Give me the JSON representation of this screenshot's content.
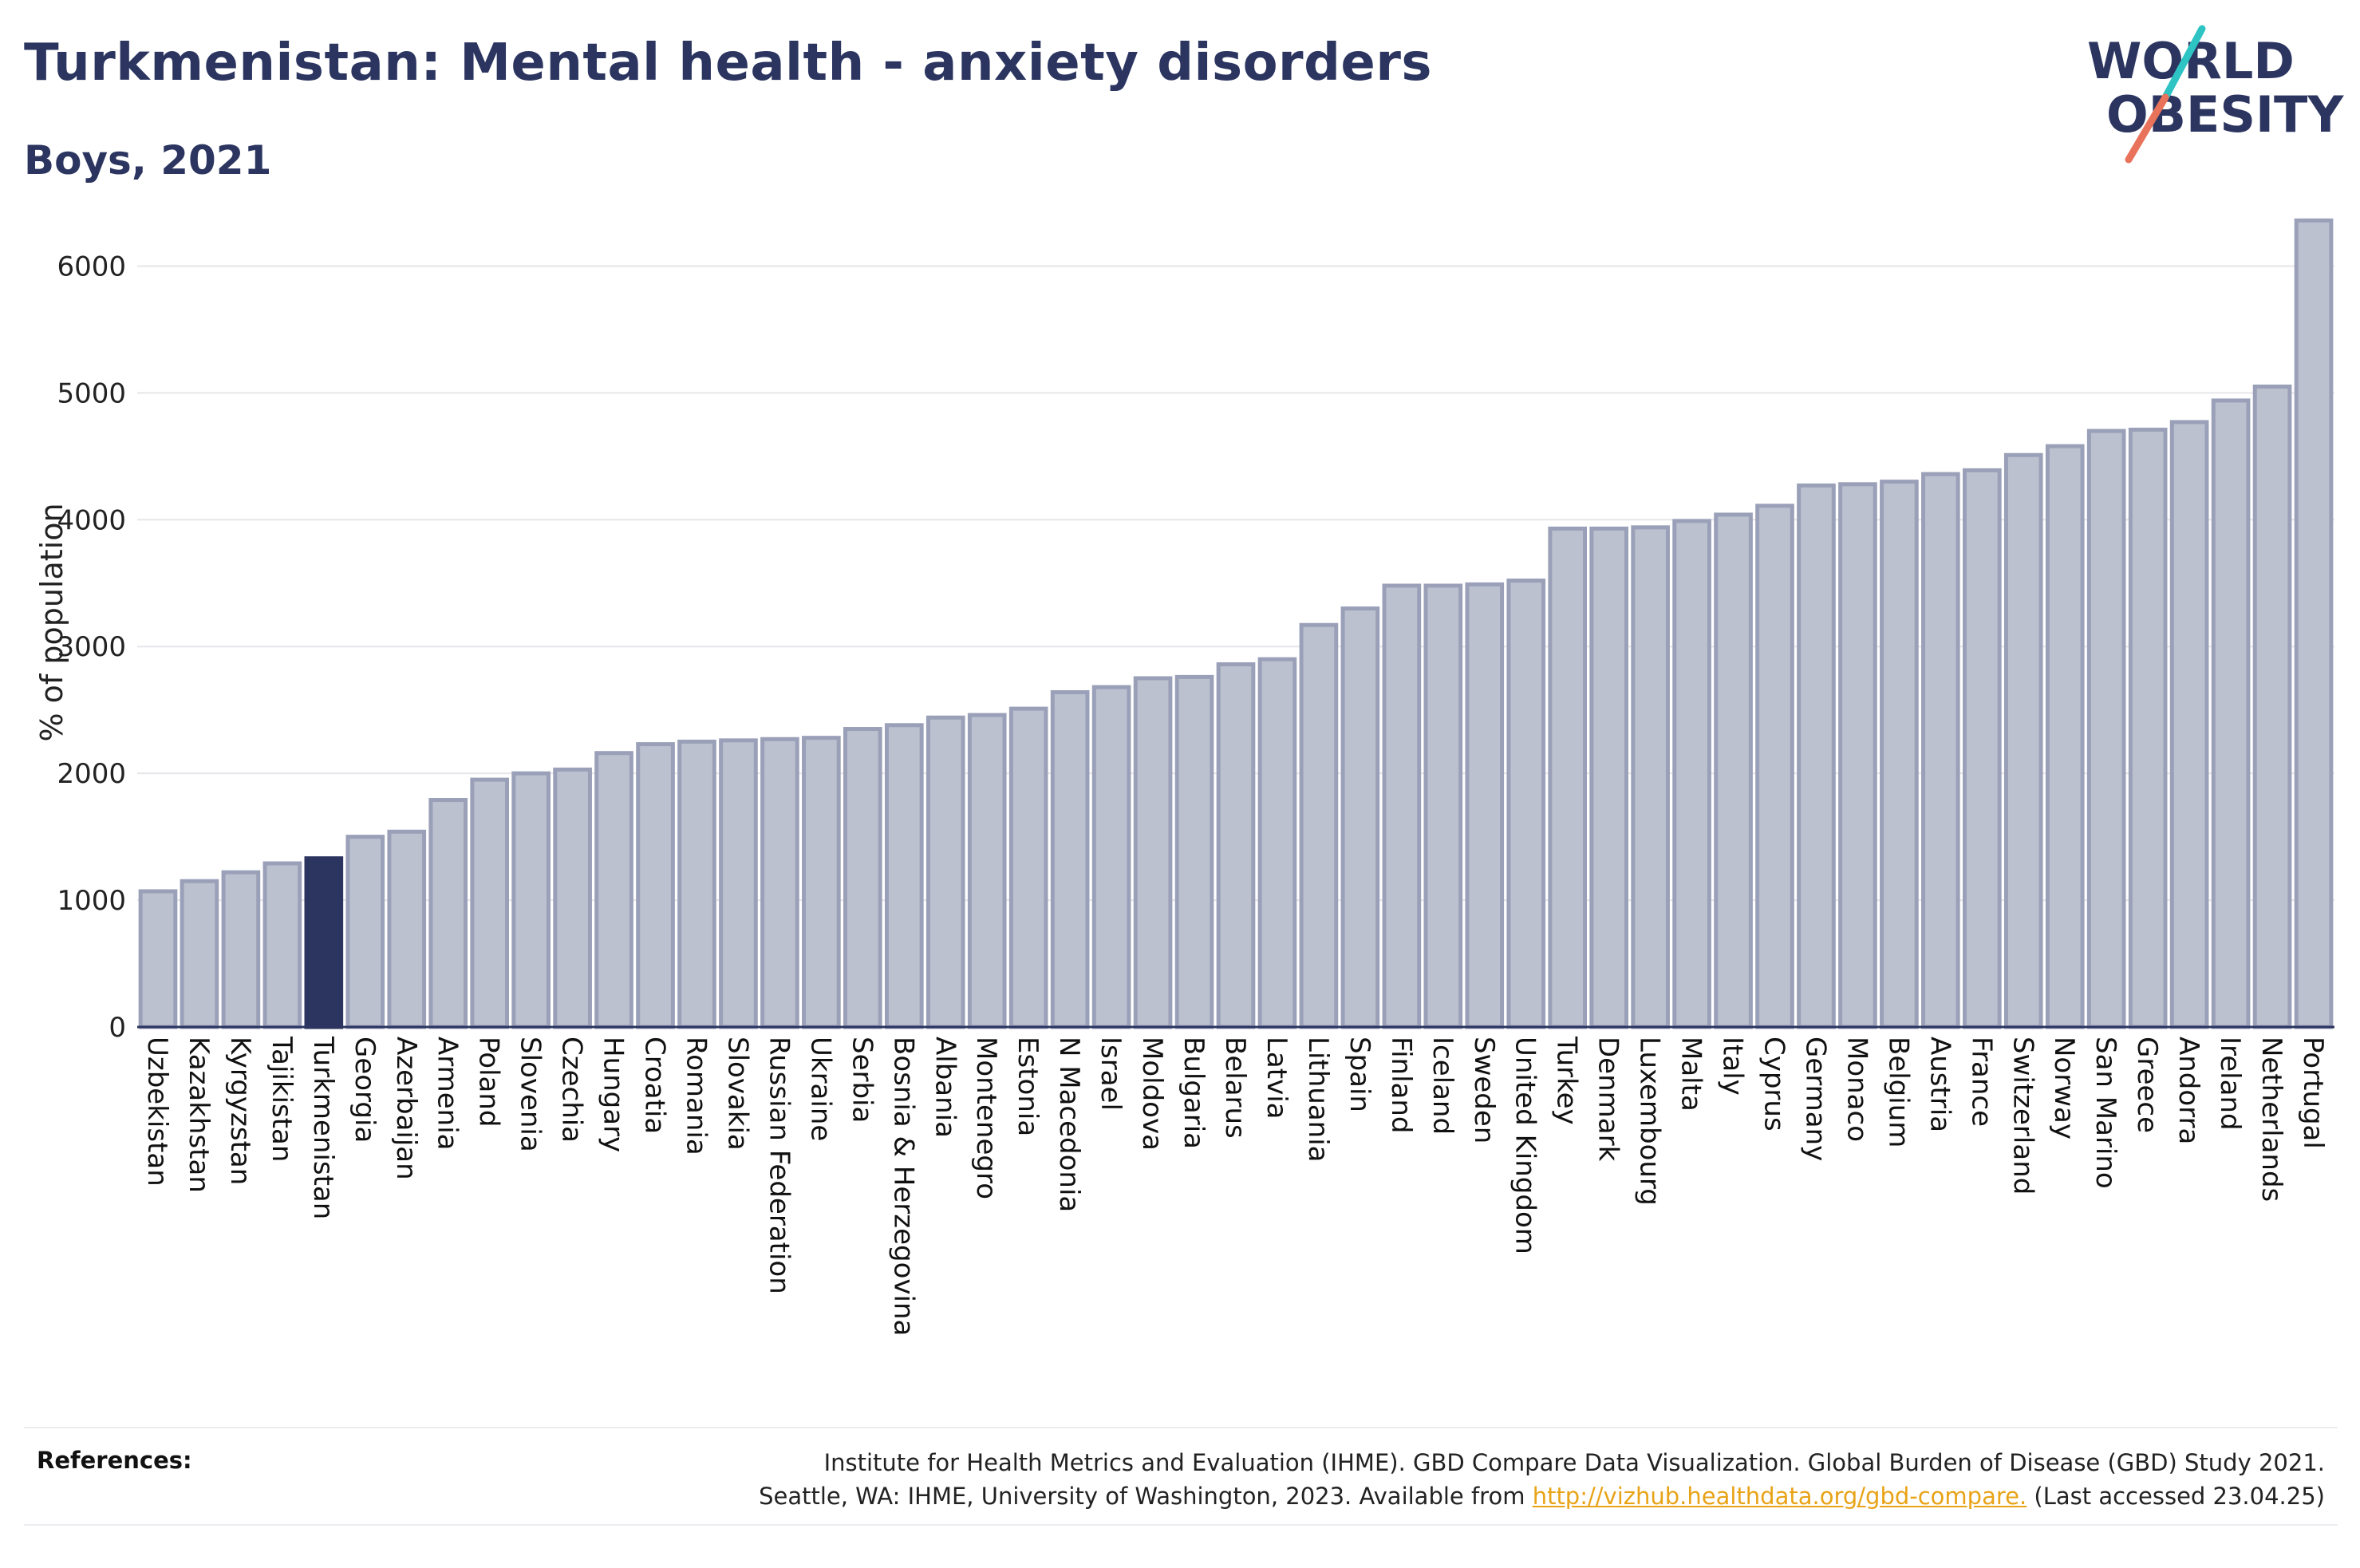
{
  "header": {
    "title": "Turkmenistan: Mental health - anxiety disorders",
    "subtitle": "Boys, 2021"
  },
  "logo": {
    "line1": "WORLD",
    "line2": "OBESITY",
    "colors": {
      "text": "#2b3560",
      "slash_top": "#2ec4c4",
      "slash_bottom": "#e8735a"
    }
  },
  "chart_data": {
    "type": "bar",
    "title": "Turkmenistan: Mental health - anxiety disorders",
    "subtitle": "Boys, 2021",
    "ylabel": "% of population",
    "xlabel": "",
    "ylim": [
      0,
      6500
    ],
    "yticks": [
      0,
      1000,
      2000,
      3000,
      4000,
      5000,
      6000
    ],
    "grid": true,
    "highlight": "Turkmenistan",
    "colors": {
      "bar": "#bcc1d0",
      "bar_edge": "#9aa0b8",
      "highlight": "#2b3560",
      "grid": "#e6e6ea",
      "axis": "#2b3560"
    },
    "categories": [
      "Uzbekistan",
      "Kazakhstan",
      "Kyrgyzstan",
      "Tajikistan",
      "Turkmenistan",
      "Georgia",
      "Azerbaijan",
      "Armenia",
      "Poland",
      "Slovenia",
      "Czechia",
      "Hungary",
      "Croatia",
      "Romania",
      "Slovakia",
      "Russian Federation",
      "Ukraine",
      "Serbia",
      "Bosnia & Herzegovina",
      "Albania",
      "Montenegro",
      "Estonia",
      "N Macedonia",
      "Israel",
      "Moldova",
      "Bulgaria",
      "Belarus",
      "Latvia",
      "Lithuania",
      "Spain",
      "Finland",
      "Iceland",
      "Sweden",
      "United Kingdom",
      "Turkey",
      "Denmark",
      "Luxembourg",
      "Malta",
      "Italy",
      "Cyprus",
      "Germany",
      "Monaco",
      "Belgium",
      "Austria",
      "France",
      "Switzerland",
      "Norway",
      "San Marino",
      "Greece",
      "Andorra",
      "Ireland",
      "Netherlands",
      "Portugal"
    ],
    "values": [
      1070,
      1150,
      1220,
      1290,
      1330,
      1500,
      1540,
      1790,
      1950,
      2000,
      2030,
      2160,
      2230,
      2250,
      2260,
      2270,
      2280,
      2350,
      2380,
      2440,
      2460,
      2510,
      2640,
      2680,
      2750,
      2760,
      2860,
      2900,
      3170,
      3300,
      3480,
      3480,
      3490,
      3520,
      3930,
      3930,
      3940,
      3990,
      4040,
      4110,
      4270,
      4280,
      4300,
      4360,
      4390,
      4510,
      4580,
      4700,
      4710,
      4770,
      4940,
      5050,
      6360
    ]
  },
  "footer": {
    "references_label": "References:",
    "line1": "Institute for Health Metrics and Evaluation (IHME). GBD Compare Data Visualization. Global Burden of Disease (GBD) Study 2021.",
    "line2_prefix": "Seattle, WA: IHME, University of Washington, 2023. Available from ",
    "link": "http://vizhub.healthdata.org/gbd-compare.",
    "line2_suffix": " (Last accessed 23.04.25)"
  }
}
